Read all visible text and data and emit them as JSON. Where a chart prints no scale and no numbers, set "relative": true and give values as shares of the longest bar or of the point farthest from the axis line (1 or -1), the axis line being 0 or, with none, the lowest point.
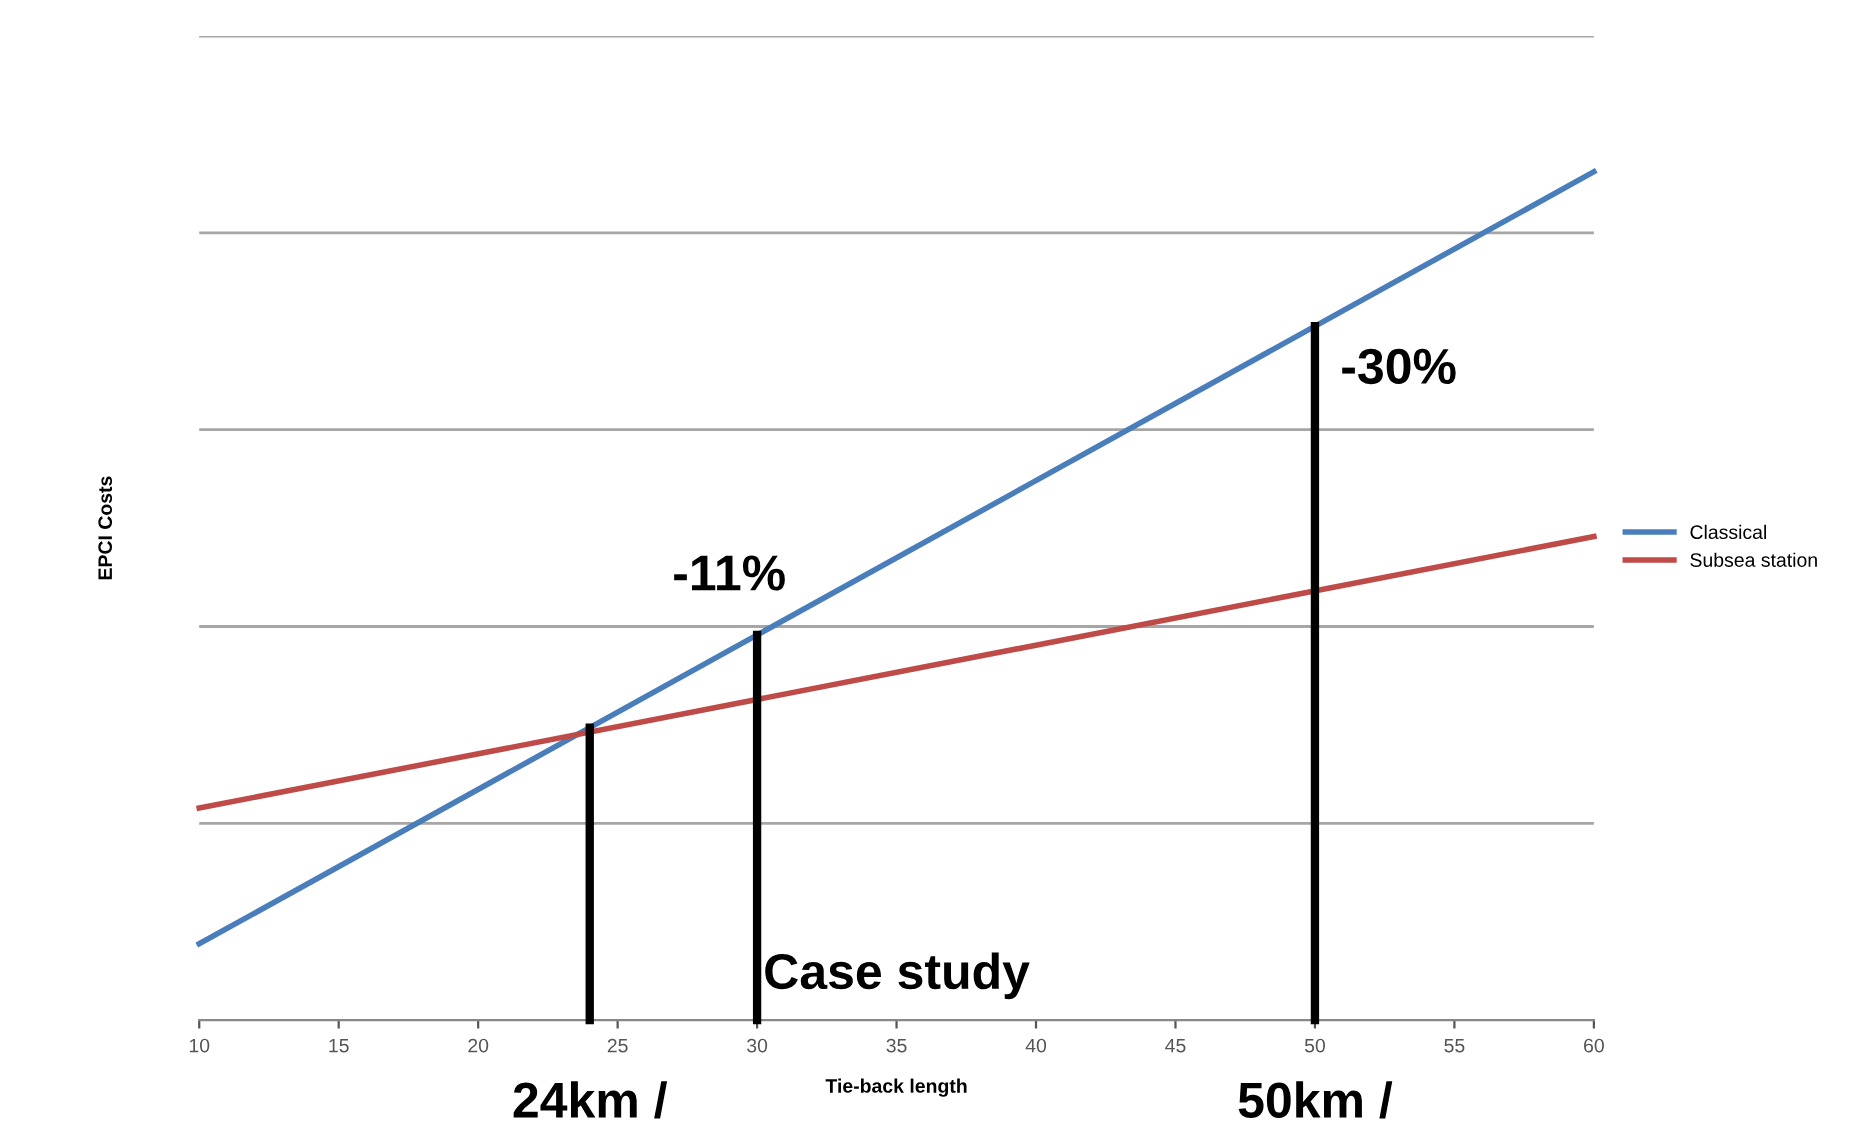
{
  "chart_data": {
    "type": "line",
    "xlabel": "Tie-back length",
    "ylabel": "EPCI Costs",
    "relative": true,
    "x": [
      10,
      60
    ],
    "xlim": [
      10,
      60
    ],
    "xticks": [
      10,
      15,
      20,
      25,
      30,
      35,
      40,
      45,
      50,
      55,
      60
    ],
    "grid": "y",
    "legend": "right",
    "marker": "none",
    "line_style": "solid",
    "series": [
      {
        "name": "Classical",
        "color": "#4a7ebb",
        "values": [
          0.09,
          1
        ]
      },
      {
        "name": "Subsea station",
        "color": "#be4b48",
        "values": [
          0.25,
          0.57
        ]
      }
    ],
    "ref_lines": [
      {
        "axis": "x",
        "value": 24,
        "label": "24km /",
        "color": "#000000"
      },
      {
        "axis": "x",
        "value": 30,
        "label": null,
        "color": "#000000"
      },
      {
        "axis": "x",
        "value": 50,
        "label": "50km /",
        "color": "#000000"
      }
    ],
    "annotations": [
      "-11%",
      "-30%",
      "Case study"
    ]
  }
}
